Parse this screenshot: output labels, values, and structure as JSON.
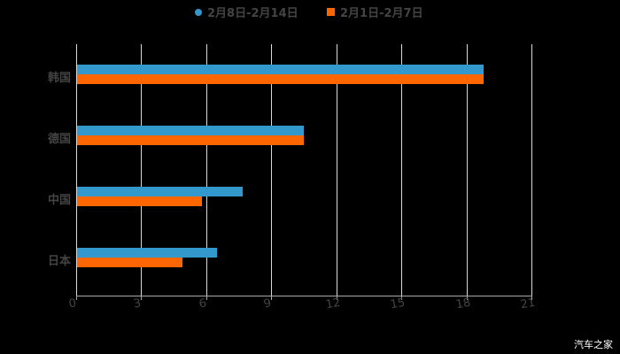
{
  "chart_data": {
    "type": "bar",
    "orientation": "horizontal",
    "title": "",
    "categories": [
      "韩国",
      "德国",
      "中国",
      "日本"
    ],
    "series": [
      {
        "name": "2月8日-2月14日",
        "color": "#3399cc",
        "values": [
          18.8,
          10.5,
          7.7,
          6.5
        ]
      },
      {
        "name": "2月1日-2月7日",
        "color": "#ff6600",
        "values": [
          18.8,
          10.5,
          5.8,
          4.9
        ]
      }
    ],
    "xlabel": "",
    "ylabel": "",
    "xlim": [
      0,
      21
    ],
    "xticks": [
      "0",
      "3",
      "6",
      "9",
      "12",
      "15",
      "18",
      "21"
    ],
    "grid": true,
    "legend_position": "top"
  },
  "legend": [
    {
      "label": "2月8日-2月14日",
      "color": "#3399cc",
      "marker": "circle"
    },
    {
      "label": "2月1日-2月7日",
      "color": "#ff6600",
      "marker": "square"
    }
  ],
  "watermark": "汽车之家"
}
